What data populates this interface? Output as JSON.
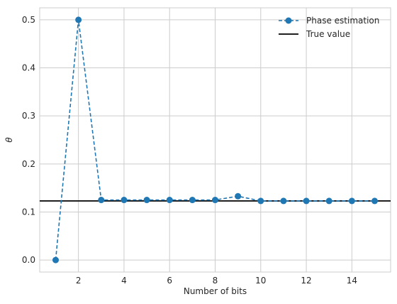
{
  "chart_data": {
    "type": "line",
    "title": "",
    "xlabel": "Number of bits",
    "ylabel": "θ",
    "xlim": [
      0.3,
      15.7
    ],
    "ylim": [
      -0.025,
      0.525
    ],
    "grid": true,
    "legend_position": "top-right",
    "x_ticks": [
      2,
      4,
      6,
      8,
      10,
      12,
      14
    ],
    "y_ticks": [
      0.0,
      0.1,
      0.2,
      0.3,
      0.4,
      0.5
    ],
    "x_tick_labels": [
      "2",
      "4",
      "6",
      "8",
      "10",
      "12",
      "14"
    ],
    "y_tick_labels": [
      "0.0",
      "0.1",
      "0.2",
      "0.3",
      "0.4",
      "0.5"
    ],
    "series": [
      {
        "name": "Phase estimation",
        "style": "dashed-marker",
        "color": "#1f77b4",
        "x": [
          1,
          2,
          3,
          4,
          5,
          6,
          7,
          8,
          9,
          10,
          11,
          12,
          13,
          14,
          15
        ],
        "values": [
          0.0,
          0.5,
          0.125,
          0.125,
          0.125,
          0.125,
          0.125,
          0.125,
          0.1328,
          0.123,
          0.123,
          0.123,
          0.123,
          0.123,
          0.123
        ]
      },
      {
        "name": "True value",
        "style": "horizontal-line",
        "color": "#000000",
        "value": 0.123
      }
    ]
  }
}
